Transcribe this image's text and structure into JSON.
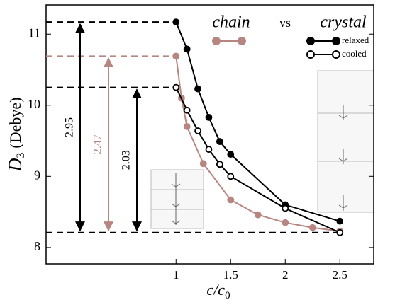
{
  "chart_data": {
    "type": "line",
    "y_label": {
      "symbol": "D",
      "subscript": "3",
      "unit": "(Debye)"
    },
    "x_label": {
      "symbol": "c/c",
      "subscript": "0"
    },
    "xlim": [
      -0.19,
      2.81
    ],
    "ylim": [
      7.77,
      11.41
    ],
    "xticks": [
      1,
      1.5,
      2,
      2.5
    ],
    "yticks": [
      8,
      9,
      10,
      11
    ],
    "series": [
      {
        "name": "chain",
        "color": "#b88680",
        "marker": "filled",
        "x": [
          1,
          1.05,
          1.1,
          1.25,
          1.5,
          1.75,
          2,
          2.25,
          2.5
        ],
        "y": [
          10.69,
          10.1,
          9.7,
          9.18,
          8.67,
          8.46,
          8.35,
          8.28,
          8.23
        ]
      },
      {
        "name": "relaxed",
        "color": "#000000",
        "marker": "filled",
        "x": [
          1,
          1.1,
          1.2,
          1.3,
          1.4,
          1.5,
          2,
          2.5
        ],
        "y": [
          11.17,
          10.79,
          10.23,
          9.83,
          9.49,
          9.31,
          8.6,
          8.37
        ]
      },
      {
        "name": "cooled",
        "color": "#000000",
        "marker": "open",
        "x": [
          1,
          1.1,
          1.2,
          1.3,
          1.4,
          1.5,
          2,
          2.5
        ],
        "y": [
          10.25,
          9.93,
          9.64,
          9.38,
          9.17,
          9.0,
          8.55,
          8.21
        ]
      }
    ],
    "legend_vs": "vs",
    "legend_group": "crystal",
    "hlines": [
      {
        "y": 11.17,
        "x_end": 1,
        "color": "#000000"
      },
      {
        "y": 10.69,
        "x_end": 1,
        "color": "#b88680"
      },
      {
        "y": 10.25,
        "x_end": 1,
        "color": "#000000"
      },
      {
        "y": 8.21,
        "x_end": 2.5,
        "color": "#000000"
      }
    ],
    "annotations": [
      {
        "text": "2.95",
        "from": 8.21,
        "to": 11.17,
        "color": "#000000"
      },
      {
        "text": "2.47",
        "from": 8.21,
        "to": 10.69,
        "color": "#b88680"
      },
      {
        "text": "2.03",
        "from": 8.21,
        "to": 10.25,
        "color": "#000000"
      }
    ]
  }
}
